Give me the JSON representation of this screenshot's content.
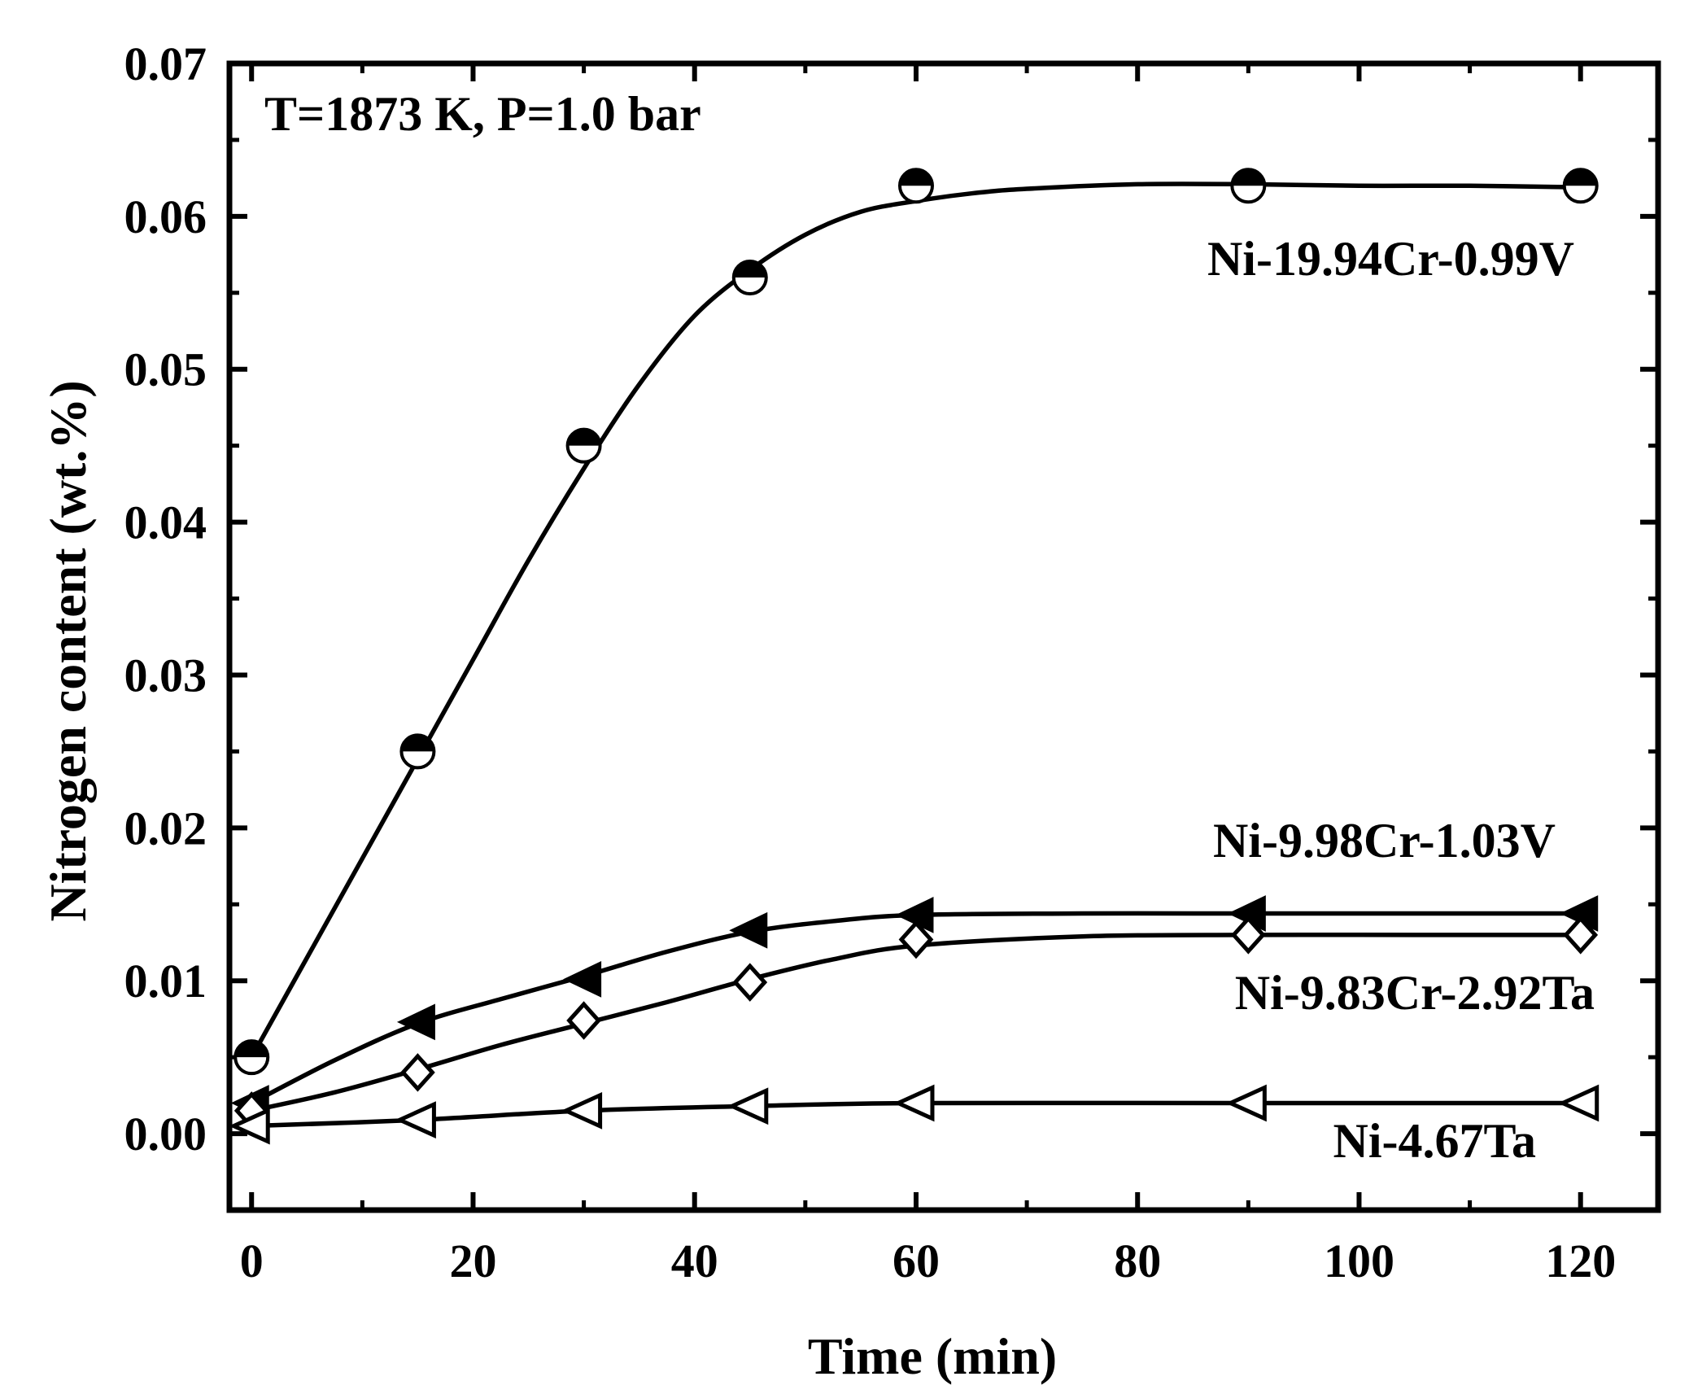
{
  "chart_data": {
    "type": "line",
    "title": "",
    "xlabel": "Time (min)",
    "ylabel": "Nitrogen content (wt.%)",
    "xlim": [
      -2,
      127
    ],
    "ylim": [
      -0.005,
      0.07
    ],
    "x_ticks": [
      0,
      20,
      40,
      60,
      80,
      100,
      120
    ],
    "y_ticks": [
      0.0,
      0.01,
      0.02,
      0.03,
      0.04,
      0.05,
      0.06,
      0.07
    ],
    "x_tick_labels": [
      "0",
      "20",
      "40",
      "60",
      "80",
      "100",
      "120"
    ],
    "y_tick_labels": [
      "0.00",
      "0.01",
      "0.02",
      "0.03",
      "0.04",
      "0.05",
      "0.06",
      "0.07"
    ],
    "grid": false,
    "annotation": "T=1873 K, P=1.0 bar",
    "series": [
      {
        "name": "Ni-19.94Cr-0.99V",
        "marker": "half-filled-circle",
        "x": [
          0,
          15,
          30,
          45,
          60,
          90,
          120
        ],
        "y": [
          0.005,
          0.025,
          0.045,
          0.056,
          0.062,
          0.062,
          0.062
        ],
        "fit_x": [
          0,
          5,
          10,
          15,
          20,
          25,
          30,
          35,
          40,
          45,
          50,
          55,
          60,
          65,
          70,
          80,
          90,
          100,
          110,
          120
        ],
        "fit_y": [
          0.005,
          0.0115,
          0.018,
          0.0245,
          0.031,
          0.0375,
          0.0435,
          0.049,
          0.0535,
          0.0565,
          0.0588,
          0.0603,
          0.061,
          0.0615,
          0.0618,
          0.0621,
          0.0621,
          0.062,
          0.062,
          0.0619
        ]
      },
      {
        "name": "Ni-9.98Cr-1.03V",
        "marker": "filled-left-triangle",
        "x": [
          0,
          15,
          30,
          45,
          60,
          90,
          120
        ],
        "y": [
          0.002,
          0.0073,
          0.0101,
          0.0133,
          0.0143,
          0.0144,
          0.0144
        ],
        "fit_x": [
          0,
          7.5,
          15,
          22.5,
          30,
          37.5,
          45,
          52.5,
          60,
          75,
          90,
          105,
          120
        ],
        "fit_y": [
          0.002,
          0.0048,
          0.0072,
          0.0088,
          0.0103,
          0.0119,
          0.0132,
          0.0139,
          0.0143,
          0.0144,
          0.0144,
          0.0144,
          0.0144
        ]
      },
      {
        "name": "Ni-9.83Cr-2.92Ta",
        "marker": "open-diamond",
        "x": [
          0,
          15,
          30,
          45,
          60,
          90,
          120
        ],
        "y": [
          0.0015,
          0.004,
          0.0074,
          0.0099,
          0.0127,
          0.013,
          0.013
        ],
        "fit_x": [
          0,
          7.5,
          15,
          22.5,
          30,
          37.5,
          45,
          52.5,
          60,
          75,
          90,
          105,
          120
        ],
        "fit_y": [
          0.0015,
          0.0027,
          0.0042,
          0.0058,
          0.0072,
          0.0086,
          0.0101,
          0.0114,
          0.0123,
          0.0129,
          0.013,
          0.013,
          0.013
        ]
      },
      {
        "name": "Ni-4.67Ta",
        "marker": "open-left-triangle",
        "x": [
          0,
          15,
          30,
          45,
          60,
          90,
          120
        ],
        "y": [
          0.0005,
          0.0009,
          0.0015,
          0.0018,
          0.002,
          0.002,
          0.002
        ],
        "fit_x": [
          0,
          15,
          30,
          45,
          60,
          90,
          120
        ],
        "fit_y": [
          0.0005,
          0.0009,
          0.0015,
          0.0018,
          0.002,
          0.002,
          0.002
        ]
      }
    ]
  }
}
